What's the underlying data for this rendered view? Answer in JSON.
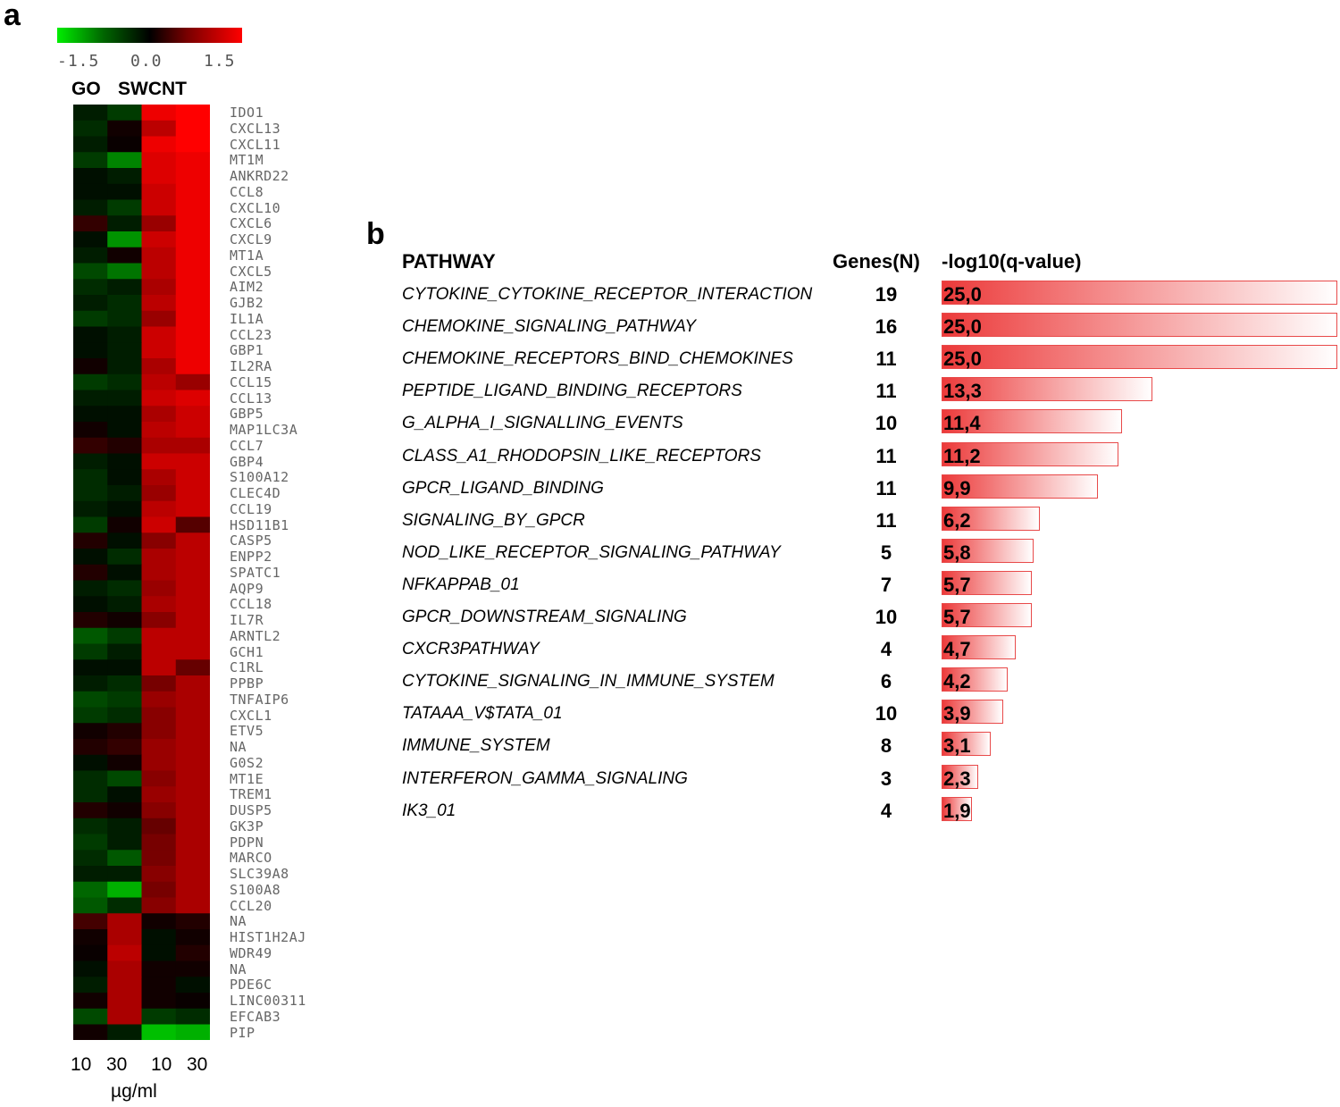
{
  "panel_a": {
    "letter": "a",
    "colorbar": {
      "min_label": "-1.5",
      "mid_label": "0.0",
      "max_label": "1.5",
      "low_color": "#00ee00",
      "mid_color": "#000000",
      "high_color": "#ff0000"
    },
    "group_labels": [
      "GO",
      "SWCNT"
    ],
    "x_tick_labels": [
      "10",
      "30",
      "10",
      "30"
    ],
    "units": "µg/ml"
  },
  "panel_b": {
    "letter": "b",
    "headers": {
      "pathway": "PATHWAY",
      "genes": "Genes(N)",
      "qvalue": "-log10(q-value)"
    },
    "bar_color": "#ec3a3a"
  },
  "chart_data": [
    {
      "type": "heatmap",
      "title": "",
      "columns": [
        "GO 10 µg/ml",
        "GO 30 µg/ml",
        "SWCNT 10 µg/ml",
        "SWCNT 30 µg/ml"
      ],
      "range": [
        -1.5,
        1.5
      ],
      "rows": [
        {
          "gene": "IDO1",
          "values": [
            -0.2,
            -0.4,
            1.4,
            1.5
          ]
        },
        {
          "gene": "CXCL13",
          "values": [
            -0.3,
            0.1,
            1.1,
            1.5
          ]
        },
        {
          "gene": "CXCL11",
          "values": [
            -0.2,
            0.05,
            1.4,
            1.5
          ]
        },
        {
          "gene": "MT1M",
          "values": [
            -0.4,
            -0.9,
            1.3,
            1.4
          ]
        },
        {
          "gene": "ANKRD22",
          "values": [
            -0.1,
            -0.2,
            1.3,
            1.4
          ]
        },
        {
          "gene": "CCL8",
          "values": [
            -0.1,
            -0.1,
            1.2,
            1.4
          ]
        },
        {
          "gene": "CXCL10",
          "values": [
            -0.2,
            -0.4,
            1.2,
            1.4
          ]
        },
        {
          "gene": "CXCL6",
          "values": [
            0.3,
            -0.2,
            0.9,
            1.4
          ]
        },
        {
          "gene": "CXCL9",
          "values": [
            -0.1,
            -1.0,
            1.2,
            1.4
          ]
        },
        {
          "gene": "MT1A",
          "values": [
            -0.2,
            0.1,
            1.1,
            1.4
          ]
        },
        {
          "gene": "CXCL5",
          "values": [
            -0.5,
            -0.8,
            1.1,
            1.4
          ]
        },
        {
          "gene": "AIM2",
          "values": [
            -0.3,
            -0.2,
            1.0,
            1.4
          ]
        },
        {
          "gene": "GJB2",
          "values": [
            -0.2,
            -0.3,
            1.1,
            1.4
          ]
        },
        {
          "gene": "IL1A",
          "values": [
            -0.4,
            -0.3,
            0.9,
            1.4
          ]
        },
        {
          "gene": "CCL23",
          "values": [
            -0.1,
            -0.2,
            1.2,
            1.4
          ]
        },
        {
          "gene": "GBP1",
          "values": [
            -0.1,
            -0.2,
            1.2,
            1.4
          ]
        },
        {
          "gene": "IL2RA",
          "values": [
            0.1,
            -0.2,
            1.0,
            1.4
          ]
        },
        {
          "gene": "CCL15",
          "values": [
            -0.4,
            -0.3,
            1.1,
            0.9
          ]
        },
        {
          "gene": "CCL13",
          "values": [
            -0.2,
            -0.2,
            1.2,
            1.3
          ]
        },
        {
          "gene": "GBP5",
          "values": [
            -0.1,
            -0.1,
            1.0,
            1.2
          ]
        },
        {
          "gene": "MAP1LC3A",
          "values": [
            0.1,
            -0.1,
            1.1,
            1.2
          ]
        },
        {
          "gene": "CCL7",
          "values": [
            0.3,
            0.2,
            1.0,
            1.0
          ]
        },
        {
          "gene": "GBP4",
          "values": [
            -0.2,
            -0.1,
            1.2,
            1.2
          ]
        },
        {
          "gene": "S100A12",
          "values": [
            -0.3,
            -0.1,
            1.0,
            1.2
          ]
        },
        {
          "gene": "CLEC4D",
          "values": [
            -0.3,
            -0.2,
            0.9,
            1.2
          ]
        },
        {
          "gene": "CCL19",
          "values": [
            -0.2,
            -0.1,
            1.1,
            1.2
          ]
        },
        {
          "gene": "HSD11B1",
          "values": [
            -0.4,
            0.1,
            1.2,
            0.5
          ]
        },
        {
          "gene": "CASP5",
          "values": [
            0.2,
            -0.1,
            0.8,
            1.1
          ]
        },
        {
          "gene": "ENPP2",
          "values": [
            -0.1,
            -0.3,
            1.0,
            1.1
          ]
        },
        {
          "gene": "SPATC1",
          "values": [
            0.2,
            -0.1,
            1.0,
            1.1
          ]
        },
        {
          "gene": "AQP9",
          "values": [
            -0.2,
            -0.3,
            0.9,
            1.1
          ]
        },
        {
          "gene": "CCL18",
          "values": [
            -0.1,
            -0.2,
            1.0,
            1.1
          ]
        },
        {
          "gene": "IL7R",
          "values": [
            0.2,
            0.1,
            0.8,
            1.1
          ]
        },
        {
          "gene": "ARNTL2",
          "values": [
            -0.6,
            -0.4,
            1.1,
            1.1
          ]
        },
        {
          "gene": "GCH1",
          "values": [
            -0.4,
            -0.2,
            1.1,
            1.1
          ]
        },
        {
          "gene": "C1RL",
          "values": [
            -0.1,
            -0.1,
            1.1,
            0.6
          ]
        },
        {
          "gene": "PPBP",
          "values": [
            -0.2,
            -0.3,
            0.7,
            1.0
          ]
        },
        {
          "gene": "TNFAIP6",
          "values": [
            -0.5,
            -0.4,
            0.9,
            1.0
          ]
        },
        {
          "gene": "CXCL1",
          "values": [
            -0.4,
            -0.3,
            0.8,
            1.0
          ]
        },
        {
          "gene": "ETV5",
          "values": [
            0.1,
            0.2,
            0.8,
            1.0
          ]
        },
        {
          "gene": "NA",
          "values": [
            0.2,
            0.3,
            0.9,
            1.0
          ]
        },
        {
          "gene": "G0S2",
          "values": [
            -0.1,
            0.1,
            0.9,
            1.0
          ]
        },
        {
          "gene": "MT1E",
          "values": [
            -0.3,
            -0.5,
            0.8,
            1.0
          ]
        },
        {
          "gene": "TREM1",
          "values": [
            -0.3,
            -0.1,
            0.9,
            1.0
          ]
        },
        {
          "gene": "DUSP5",
          "values": [
            0.2,
            0.1,
            0.8,
            1.0
          ]
        },
        {
          "gene": "GK3P",
          "values": [
            -0.3,
            -0.2,
            0.6,
            1.0
          ]
        },
        {
          "gene": "PDPN",
          "values": [
            -0.4,
            -0.2,
            0.7,
            1.0
          ]
        },
        {
          "gene": "MARCO",
          "values": [
            -0.3,
            -0.6,
            0.7,
            1.0
          ]
        },
        {
          "gene": "SLC39A8",
          "values": [
            -0.2,
            -0.2,
            0.8,
            1.0
          ]
        },
        {
          "gene": "S100A8",
          "values": [
            -0.7,
            -1.2,
            0.7,
            1.0
          ]
        },
        {
          "gene": "CCL20",
          "values": [
            -0.6,
            -0.3,
            0.8,
            1.0
          ]
        },
        {
          "gene": "NA",
          "values": [
            0.4,
            1.0,
            0.1,
            0.2
          ]
        },
        {
          "gene": "HIST1H2AJ",
          "values": [
            0.1,
            1.0,
            -0.1,
            0.1
          ]
        },
        {
          "gene": "WDR49",
          "values": [
            0.05,
            1.1,
            -0.1,
            0.2
          ]
        },
        {
          "gene": "NA",
          "values": [
            -0.1,
            1.0,
            0.1,
            0.1
          ]
        },
        {
          "gene": "PDE6C",
          "values": [
            -0.2,
            1.0,
            0.1,
            -0.1
          ]
        },
        {
          "gene": "LINC00311",
          "values": [
            0.1,
            1.0,
            0.1,
            0.05
          ]
        },
        {
          "gene": "EFCAB3",
          "values": [
            -0.5,
            1.0,
            -0.4,
            -0.3
          ]
        },
        {
          "gene": "PIP",
          "values": [
            0.1,
            -0.2,
            -1.3,
            -1.2
          ]
        }
      ]
    },
    {
      "type": "bar",
      "orientation": "horizontal",
      "title": "",
      "xlabel": "-log10(q-value)",
      "xlim": [
        0,
        25
      ],
      "categories": [
        "CYTOKINE_CYTOKINE_RECEPTOR_INTERACTION",
        "CHEMOKINE_SIGNALING_PATHWAY",
        "CHEMOKINE_RECEPTORS_BIND_CHEMOKINES",
        "PEPTIDE_LIGAND_BINDING_RECEPTORS",
        "G_ALPHA_I_SIGNALLING_EVENTS",
        "CLASS_A1_RHODOPSIN_LIKE_RECEPTORS",
        "GPCR_LIGAND_BINDING",
        "SIGNALING_BY_GPCR",
        "NOD_LIKE_RECEPTOR_SIGNALING_PATHWAY",
        "NFKAPPAB_01",
        "GPCR_DOWNSTREAM_SIGNALING",
        "CXCR3PATHWAY",
        "CYTOKINE_SIGNALING_IN_IMMUNE_SYSTEM",
        "TATAAA_V$TATA_01",
        "IMMUNE_SYSTEM",
        "INTERFERON_GAMMA_SIGNALING",
        "IK3_01"
      ],
      "genes": [
        "19",
        "16",
        "11",
        "11",
        "10",
        "11",
        "11",
        "11",
        "5",
        "7",
        "10",
        "4",
        "6",
        "10",
        "8",
        "3",
        "4"
      ],
      "values": [
        25.0,
        25.0,
        25.0,
        13.3,
        11.4,
        11.2,
        9.9,
        6.2,
        5.8,
        5.7,
        5.7,
        4.7,
        4.2,
        3.9,
        3.1,
        2.3,
        1.9
      ],
      "value_labels": [
        "25,0",
        "25,0",
        "25,0",
        "13,3",
        "11,4",
        "11,2",
        "9,9",
        "6,2",
        "5,8",
        "5,7",
        "5,7",
        "4,7",
        "4,2",
        "3,9",
        "3,1",
        "2,3",
        "1,9"
      ]
    }
  ]
}
